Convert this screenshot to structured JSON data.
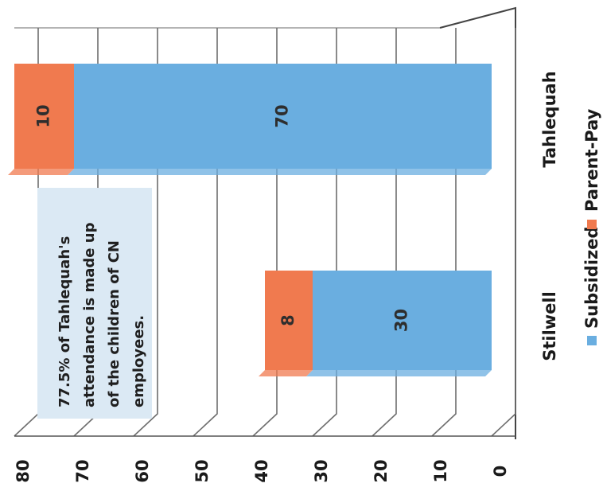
{
  "chart_data": {
    "type": "bar",
    "orientation": "horizontal",
    "stacked": true,
    "three_d": true,
    "categories": [
      "Stilwell",
      "Tahlequah"
    ],
    "series": [
      {
        "name": "Subsidized",
        "values": [
          30,
          70
        ],
        "color": "#6aaee0"
      },
      {
        "name": "Parent-Pay",
        "values": [
          8,
          10
        ],
        "color": "#f07a4f"
      }
    ],
    "ticks": [
      0,
      10,
      20,
      30,
      40,
      50,
      60,
      70,
      80
    ],
    "xlim": [
      0,
      80
    ],
    "grid": true,
    "legend_position": "bottom",
    "annotation": "77.5% of Tahlequah's attendance is made up of the children of CN employees.",
    "annotation_lines": [
      "77.5% of Tahlequah's",
      "attendance is made up",
      "of the children of CN",
      "employees."
    ],
    "title": "",
    "xlabel": "",
    "ylabel": ""
  }
}
